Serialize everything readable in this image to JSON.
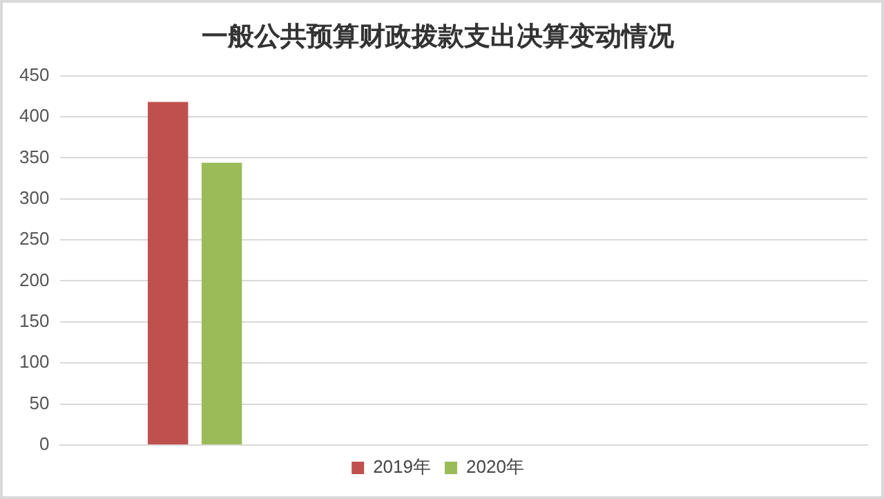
{
  "chart_data": {
    "type": "bar",
    "title": "一般公共预算财政拨款支出决算变动情况",
    "categories": [
      null,
      null,
      null
    ],
    "series": [
      {
        "name": "2019年",
        "color": "#c0504d",
        "values": [
          418,
          null,
          null
        ]
      },
      {
        "name": "2020年",
        "color": "#9bbb59",
        "values": [
          344,
          null,
          null
        ]
      }
    ],
    "ylim": [
      0,
      450
    ],
    "yticks": [
      0,
      50,
      100,
      150,
      200,
      250,
      300,
      350,
      400,
      450
    ],
    "grid": "y",
    "legend": "bottom"
  }
}
